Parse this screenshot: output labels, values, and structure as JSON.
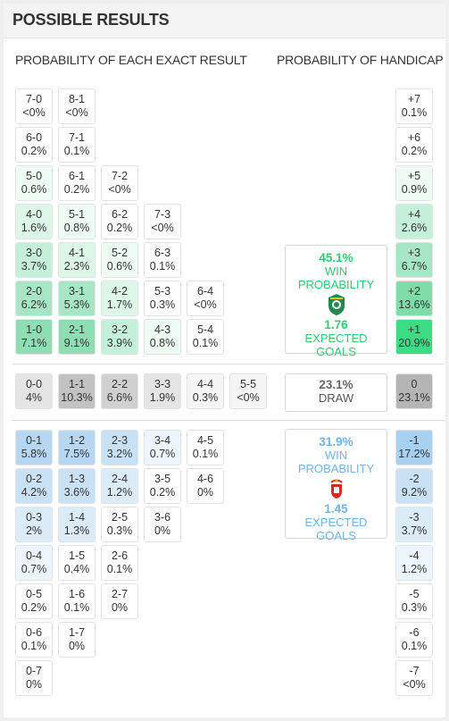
{
  "header": {
    "title": "POSSIBLE RESULTS"
  },
  "subheaders": {
    "exact": "PROBABILITY OF EACH EXACT RESULT",
    "handicap": "PROBABILITY OF HANDICAP"
  },
  "colors": {
    "home_scale": [
      "#ffffff",
      "#eefbf4",
      "#dcf6e8",
      "#c4efd8",
      "#a6e6c4",
      "#8ddeb2"
    ],
    "draw_scale": [
      "#f5f5f5",
      "#e4e4e4",
      "#d0d0d0",
      "#c2c2c2"
    ],
    "away_scale": [
      "#ffffff",
      "#edf5fc",
      "#dcebf8",
      "#c9e1f5",
      "#b6d6f2"
    ],
    "home_accent": "#2ecc71",
    "away_accent": "#6db5e6",
    "handicap_top": "#3ddc84",
    "draw_handicap": "#b5b5b5"
  },
  "home_results": [
    {
      "score": "7-0",
      "prob": "<0%"
    },
    {
      "score": "8-1",
      "prob": "<0%"
    },
    {
      "score": "6-0",
      "prob": "0.2%"
    },
    {
      "score": "7-1",
      "prob": "0.1%"
    },
    {
      "score": "5-0",
      "prob": "0.6%"
    },
    {
      "score": "6-1",
      "prob": "0.2%"
    },
    {
      "score": "7-2",
      "prob": "<0%"
    },
    {
      "score": "4-0",
      "prob": "1.6%"
    },
    {
      "score": "5-1",
      "prob": "0.8%"
    },
    {
      "score": "6-2",
      "prob": "0.2%"
    },
    {
      "score": "7-3",
      "prob": "<0%"
    },
    {
      "score": "3-0",
      "prob": "3.7%"
    },
    {
      "score": "4-1",
      "prob": "2.3%"
    },
    {
      "score": "5-2",
      "prob": "0.6%"
    },
    {
      "score": "6-3",
      "prob": "0.1%"
    },
    {
      "score": "2-0",
      "prob": "6.2%"
    },
    {
      "score": "3-1",
      "prob": "5.3%"
    },
    {
      "score": "4-2",
      "prob": "1.7%"
    },
    {
      "score": "5-3",
      "prob": "0.3%"
    },
    {
      "score": "6-4",
      "prob": "<0%"
    },
    {
      "score": "1-0",
      "prob": "7.1%"
    },
    {
      "score": "2-1",
      "prob": "9.1%"
    },
    {
      "score": "3-2",
      "prob": "3.9%"
    },
    {
      "score": "4-3",
      "prob": "0.8%"
    },
    {
      "score": "5-4",
      "prob": "0.1%"
    }
  ],
  "draw_results": [
    {
      "score": "0-0",
      "prob": "4%"
    },
    {
      "score": "1-1",
      "prob": "10.3%"
    },
    {
      "score": "2-2",
      "prob": "6.6%"
    },
    {
      "score": "3-3",
      "prob": "1.9%"
    },
    {
      "score": "4-4",
      "prob": "0.3%"
    },
    {
      "score": "5-5",
      "prob": "<0%"
    }
  ],
  "away_results": [
    {
      "score": "0-1",
      "prob": "5.8%"
    },
    {
      "score": "1-2",
      "prob": "7.5%"
    },
    {
      "score": "2-3",
      "prob": "3.2%"
    },
    {
      "score": "3-4",
      "prob": "0.7%"
    },
    {
      "score": "4-5",
      "prob": "0.1%"
    },
    {
      "score": "0-2",
      "prob": "4.2%"
    },
    {
      "score": "1-3",
      "prob": "3.6%"
    },
    {
      "score": "2-4",
      "prob": "1.2%"
    },
    {
      "score": "3-5",
      "prob": "0.2%"
    },
    {
      "score": "4-6",
      "prob": "0%"
    },
    {
      "score": "0-3",
      "prob": "2%"
    },
    {
      "score": "1-4",
      "prob": "1.3%"
    },
    {
      "score": "2-5",
      "prob": "0.3%"
    },
    {
      "score": "3-6",
      "prob": "0%"
    },
    {
      "score": "0-4",
      "prob": "0.7%"
    },
    {
      "score": "1-5",
      "prob": "0.4%"
    },
    {
      "score": "2-6",
      "prob": "0.1%"
    },
    {
      "score": "0-5",
      "prob": "0.2%"
    },
    {
      "score": "1-6",
      "prob": "0.1%"
    },
    {
      "score": "2-7",
      "prob": "0%"
    },
    {
      "score": "0-6",
      "prob": "0.1%"
    },
    {
      "score": "1-7",
      "prob": "0%"
    },
    {
      "score": "0-7",
      "prob": "0%"
    }
  ],
  "handicap_home": [
    {
      "label": "+7",
      "prob": "0.1%"
    },
    {
      "label": "+6",
      "prob": "0.2%"
    },
    {
      "label": "+5",
      "prob": "0.9%"
    },
    {
      "label": "+4",
      "prob": "2.6%"
    },
    {
      "label": "+3",
      "prob": "6.7%"
    },
    {
      "label": "+2",
      "prob": "13.6%"
    },
    {
      "label": "+1",
      "prob": "20.9%"
    }
  ],
  "handicap_draw": {
    "label": "0",
    "prob": "23.1%"
  },
  "handicap_away": [
    {
      "label": "-1",
      "prob": "17.2%"
    },
    {
      "label": "-2",
      "prob": "9.2%"
    },
    {
      "label": "-3",
      "prob": "3.7%"
    },
    {
      "label": "-4",
      "prob": "1.2%"
    },
    {
      "label": "-5",
      "prob": "0.3%"
    },
    {
      "label": "-6",
      "prob": "0.1%"
    },
    {
      "label": "-7",
      "prob": "<0%"
    }
  ],
  "home_team": {
    "win_pct": "45.1%",
    "win_label": "WIN PROBABILITY",
    "expected_goals": "1.76",
    "eg_label": "EXPECTED GOALS",
    "crest_icon": "sporting-crest-icon"
  },
  "draw": {
    "pct": "23.1%",
    "label": "DRAW"
  },
  "away_team": {
    "win_pct": "31.9%",
    "win_label": "WIN PROBABILITY",
    "expected_goals": "1.45",
    "eg_label": "EXPECTED GOALS",
    "crest_icon": "benfica-crest-icon"
  }
}
